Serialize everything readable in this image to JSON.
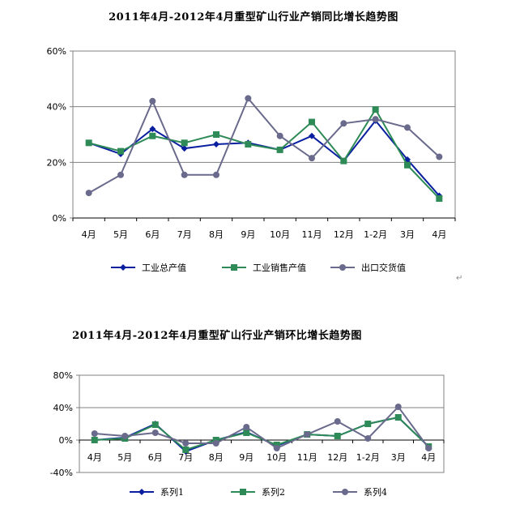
{
  "chart_data": [
    {
      "type": "line",
      "title": "2011年4月-2012年4月重型矿山行业产销同比增长趋势图",
      "categories": [
        "4月",
        "5月",
        "6月",
        "7月",
        "8月",
        "9月",
        "10月",
        "11月",
        "12月",
        "1-2月",
        "3月",
        "4月"
      ],
      "ylim": [
        0,
        60
      ],
      "yticks": [
        "0%",
        "20%",
        "40%",
        "60%"
      ],
      "ytick_values": [
        0,
        20,
        40,
        60
      ],
      "series": [
        {
          "name": "工业总产值",
          "color": "#0a1fa0",
          "marker": "diamond",
          "values": [
            27,
            23,
            32,
            25,
            26.5,
            27,
            24.5,
            29.5,
            20.5,
            35,
            21,
            8
          ]
        },
        {
          "name": "工业销售产值",
          "color": "#2e8b57",
          "marker": "square",
          "values": [
            27,
            24,
            29.5,
            27,
            30,
            26.5,
            24.5,
            34.5,
            20.5,
            39,
            19,
            7
          ]
        },
        {
          "name": "出口交货值",
          "color": "#6a6a8c",
          "marker": "circle",
          "values": [
            9,
            15.5,
            42,
            15.5,
            15.5,
            43,
            29.5,
            21.5,
            34,
            35.5,
            32.5,
            22
          ]
        }
      ]
    },
    {
      "type": "line",
      "title": "2011年4月-2012年4月重型矿山行业产销环比增长趋势图",
      "categories": [
        "4月",
        "5月",
        "6月",
        "7月",
        "8月",
        "9月",
        "10月",
        "11月",
        "12月",
        "1-2月",
        "3月",
        "4月"
      ],
      "ylim": [
        -40,
        80
      ],
      "yticks": [
        "-40%",
        "0%",
        "40%",
        "80%"
      ],
      "ytick_values": [
        -40,
        0,
        40,
        80
      ],
      "series": [
        {
          "name": "系列1",
          "color": "#0a1fa0",
          "marker": "diamond",
          "values": [
            0,
            3,
            20,
            -14,
            0,
            10,
            -7,
            7,
            5,
            20,
            28,
            -8
          ]
        },
        {
          "name": "系列2",
          "color": "#2e8b57",
          "marker": "square",
          "values": [
            0,
            2,
            19,
            -12,
            0,
            9,
            -6,
            7,
            5,
            20,
            28,
            -8
          ]
        },
        {
          "name": "系列4",
          "color": "#6a6a8c",
          "marker": "circle",
          "values": [
            8,
            5,
            9,
            -4,
            -4,
            16,
            -10,
            7,
            23,
            2,
            41,
            -10
          ]
        }
      ]
    }
  ],
  "paragraph_mark": "↵"
}
